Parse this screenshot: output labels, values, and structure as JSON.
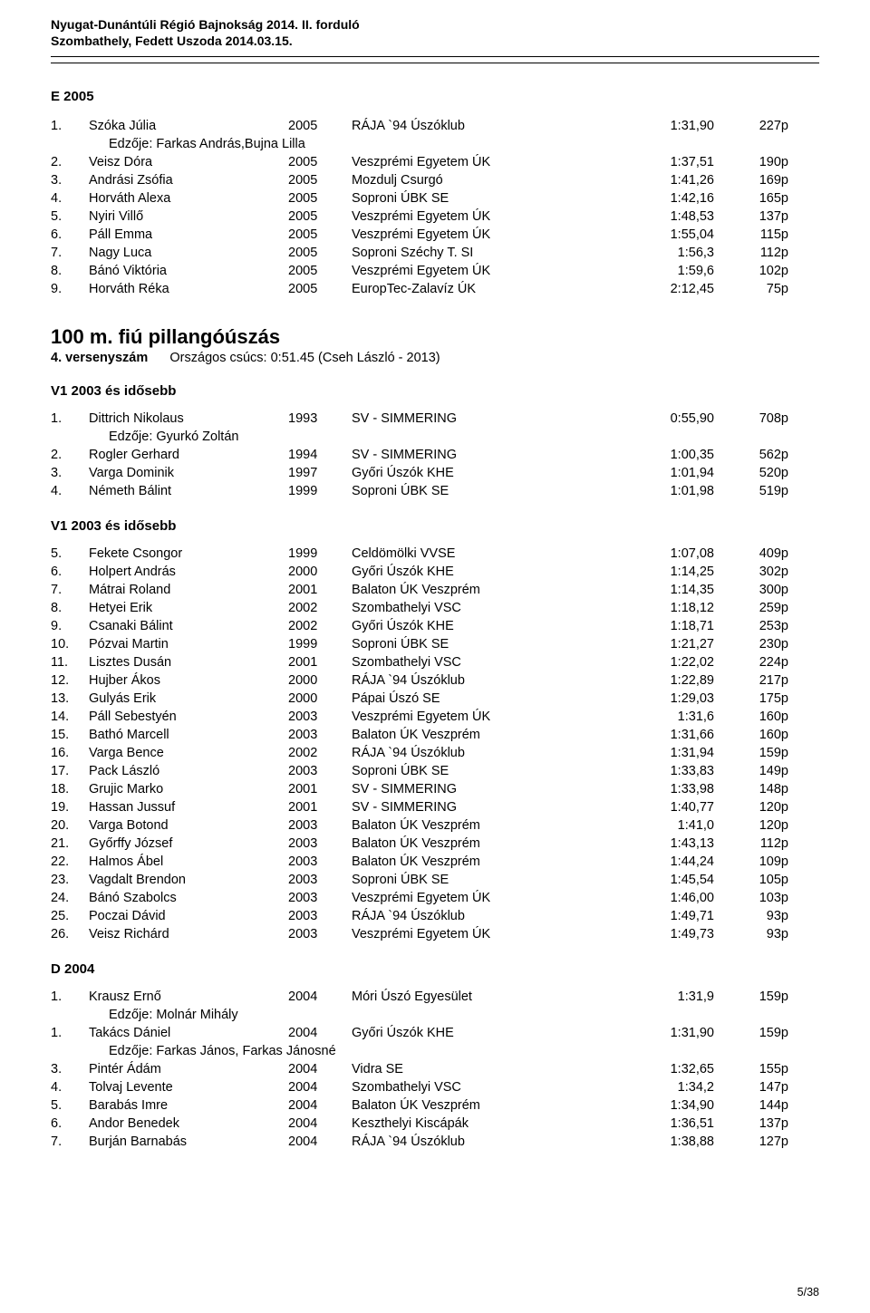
{
  "header": {
    "line1": "Nyugat-Dunántúli Régió Bajnokság 2014. II. forduló",
    "line2": "Szombathely, Fedett Uszoda 2014.03.15."
  },
  "e2005": {
    "label": "E  2005",
    "rows": [
      {
        "rank": "1.",
        "name": "Szóka Júlia",
        "year": "2005",
        "club": "RÁJA `94 Úszóklub",
        "time": "1:31,90",
        "pts": "227p"
      },
      {
        "coach": "Edzője: Farkas András,Bujna Lilla"
      },
      {
        "rank": "2.",
        "name": "Veisz Dóra",
        "year": "2005",
        "club": "Veszprémi Egyetem ÚK",
        "time": "1:37,51",
        "pts": "190p"
      },
      {
        "rank": "3.",
        "name": "Andrási Zsófia",
        "year": "2005",
        "club": "Mozdulj Csurgó",
        "time": "1:41,26",
        "pts": "169p"
      },
      {
        "rank": "4.",
        "name": "Horváth Alexa",
        "year": "2005",
        "club": "Soproni ÚBK SE",
        "time": "1:42,16",
        "pts": "165p"
      },
      {
        "rank": "5.",
        "name": "Nyiri Villő",
        "year": "2005",
        "club": "Veszprémi Egyetem ÚK",
        "time": "1:48,53",
        "pts": "137p"
      },
      {
        "rank": "6.",
        "name": "Páll Emma",
        "year": "2005",
        "club": "Veszprémi Egyetem ÚK",
        "time": "1:55,04",
        "pts": "115p"
      },
      {
        "rank": "7.",
        "name": "Nagy Luca",
        "year": "2005",
        "club": "Soproni Széchy T. SI",
        "time": "1:56,3",
        "pts": "112p"
      },
      {
        "rank": "8.",
        "name": "Bánó Viktória",
        "year": "2005",
        "club": "Veszprémi Egyetem ÚK",
        "time": "1:59,6",
        "pts": "102p"
      },
      {
        "rank": "9.",
        "name": "Horváth Réka",
        "year": "2005",
        "club": "EuropTec-Zalavíz ÚK",
        "time": "2:12,45",
        "pts": "75p"
      }
    ]
  },
  "event": {
    "title": "100 m. fiú pillangóúszás",
    "sub_bold": "4. versenyszám",
    "sub_rest": "Országos csúcs:  0:51.45 (Cseh László - 2013)"
  },
  "groupA": {
    "label": "V1 2003 és idősebb",
    "rows": [
      {
        "rank": "1.",
        "name": "Dittrich Nikolaus",
        "year": "1993",
        "club": "SV - SIMMERING",
        "time": "0:55,90",
        "pts": "708p"
      },
      {
        "coach": "Edzője: Gyurkó Zoltán"
      },
      {
        "rank": "2.",
        "name": "Rogler Gerhard",
        "year": "1994",
        "club": "SV - SIMMERING",
        "time": "1:00,35",
        "pts": "562p"
      },
      {
        "rank": "3.",
        "name": "Varga Dominik",
        "year": "1997",
        "club": "Győri Úszók KHE",
        "time": "1:01,94",
        "pts": "520p"
      },
      {
        "rank": "4.",
        "name": "Németh Bálint",
        "year": "1999",
        "club": "Soproni ÚBK SE",
        "time": "1:01,98",
        "pts": "519p"
      }
    ]
  },
  "groupB": {
    "label": "V1 2003 és idősebb",
    "rows": [
      {
        "rank": "5.",
        "name": "Fekete Csongor",
        "year": "1999",
        "club": "Celdömölki VVSE",
        "time": "1:07,08",
        "pts": "409p"
      },
      {
        "rank": "6.",
        "name": "Holpert András",
        "year": "2000",
        "club": "Győri Úszók KHE",
        "time": "1:14,25",
        "pts": "302p"
      },
      {
        "rank": "7.",
        "name": "Mátrai Roland",
        "year": "2001",
        "club": "Balaton ÚK Veszprém",
        "time": "1:14,35",
        "pts": "300p"
      },
      {
        "rank": "8.",
        "name": "Hetyei Erik",
        "year": "2002",
        "club": "Szombathelyi VSC",
        "time": "1:18,12",
        "pts": "259p"
      },
      {
        "rank": "9.",
        "name": "Csanaki Bálint",
        "year": "2002",
        "club": "Győri Úszók KHE",
        "time": "1:18,71",
        "pts": "253p"
      },
      {
        "rank": "10.",
        "name": "Pózvai Martin",
        "year": "1999",
        "club": "Soproni ÚBK SE",
        "time": "1:21,27",
        "pts": "230p"
      },
      {
        "rank": "11.",
        "name": "Lisztes Dusán",
        "year": "2001",
        "club": "Szombathelyi VSC",
        "time": "1:22,02",
        "pts": "224p"
      },
      {
        "rank": "12.",
        "name": "Hujber Ákos",
        "year": "2000",
        "club": "RÁJA `94 Úszóklub",
        "time": "1:22,89",
        "pts": "217p"
      },
      {
        "rank": "13.",
        "name": "Gulyás Erik",
        "year": "2000",
        "club": "Pápai Úszó SE",
        "time": "1:29,03",
        "pts": "175p"
      },
      {
        "rank": "14.",
        "name": "Páll Sebestyén",
        "year": "2003",
        "club": "Veszprémi Egyetem ÚK",
        "time": "1:31,6",
        "pts": "160p"
      },
      {
        "rank": "15.",
        "name": "Bathó Marcell",
        "year": "2003",
        "club": "Balaton ÚK Veszprém",
        "time": "1:31,66",
        "pts": "160p"
      },
      {
        "rank": "16.",
        "name": "Varga Bence",
        "year": "2002",
        "club": "RÁJA `94 Úszóklub",
        "time": "1:31,94",
        "pts": "159p"
      },
      {
        "rank": "17.",
        "name": "Pack László",
        "year": "2003",
        "club": "Soproni ÚBK SE",
        "time": "1:33,83",
        "pts": "149p"
      },
      {
        "rank": "18.",
        "name": "Grujic Marko",
        "year": "2001",
        "club": "SV - SIMMERING",
        "time": "1:33,98",
        "pts": "148p"
      },
      {
        "rank": "19.",
        "name": "Hassan Jussuf",
        "year": "2001",
        "club": "SV - SIMMERING",
        "time": "1:40,77",
        "pts": "120p"
      },
      {
        "rank": "20.",
        "name": "Varga Botond",
        "year": "2003",
        "club": "Balaton ÚK Veszprém",
        "time": "1:41,0",
        "pts": "120p"
      },
      {
        "rank": "21.",
        "name": "Győrffy József",
        "year": "2003",
        "club": "Balaton ÚK Veszprém",
        "time": "1:43,13",
        "pts": "112p"
      },
      {
        "rank": "22.",
        "name": "Halmos Ábel",
        "year": "2003",
        "club": "Balaton ÚK Veszprém",
        "time": "1:44,24",
        "pts": "109p"
      },
      {
        "rank": "23.",
        "name": "Vagdalt Brendon",
        "year": "2003",
        "club": "Soproni ÚBK SE",
        "time": "1:45,54",
        "pts": "105p"
      },
      {
        "rank": "24.",
        "name": "Bánó Szabolcs",
        "year": "2003",
        "club": "Veszprémi Egyetem ÚK",
        "time": "1:46,00",
        "pts": "103p"
      },
      {
        "rank": "25.",
        "name": "Poczai Dávid",
        "year": "2003",
        "club": "RÁJA `94 Úszóklub",
        "time": "1:49,71",
        "pts": "93p"
      },
      {
        "rank": "26.",
        "name": "Veisz Richárd",
        "year": "2003",
        "club": "Veszprémi Egyetem ÚK",
        "time": "1:49,73",
        "pts": "93p"
      }
    ]
  },
  "d2004": {
    "label": "D  2004",
    "rows": [
      {
        "rank": "1.",
        "name": "Krausz Ernő",
        "year": "2004",
        "club": "Móri Úszó Egyesület",
        "time": "1:31,9",
        "pts": "159p"
      },
      {
        "coach": "Edzője: Molnár Mihály"
      },
      {
        "rank": "1.",
        "name": "Takács Dániel",
        "year": "2004",
        "club": "Győri Úszók KHE",
        "time": "1:31,90",
        "pts": "159p"
      },
      {
        "coach": "Edzője: Farkas János, Farkas Jánosné"
      },
      {
        "rank": "3.",
        "name": "Pintér Ádám",
        "year": "2004",
        "club": "Vidra SE",
        "time": "1:32,65",
        "pts": "155p"
      },
      {
        "rank": "4.",
        "name": "Tolvaj Levente",
        "year": "2004",
        "club": "Szombathelyi VSC",
        "time": "1:34,2",
        "pts": "147p"
      },
      {
        "rank": "5.",
        "name": "Barabás Imre",
        "year": "2004",
        "club": "Balaton ÚK Veszprém",
        "time": "1:34,90",
        "pts": "144p"
      },
      {
        "rank": "6.",
        "name": "Andor Benedek",
        "year": "2004",
        "club": "Keszthelyi Kiscápák",
        "time": "1:36,51",
        "pts": "137p"
      },
      {
        "rank": "7.",
        "name": "Burján Barnabás",
        "year": "2004",
        "club": "RÁJA `94 Úszóklub",
        "time": "1:38,88",
        "pts": "127p"
      }
    ]
  },
  "footer": "5/38"
}
